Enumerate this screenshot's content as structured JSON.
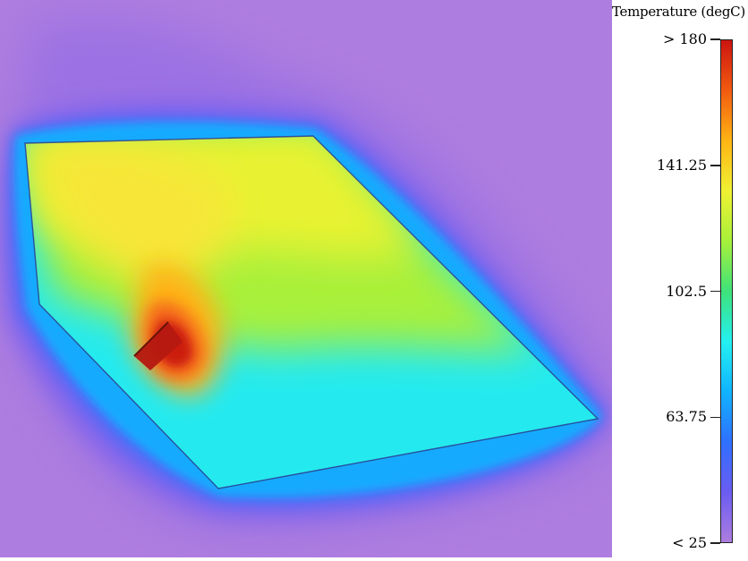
{
  "legend": {
    "title": "Temperature (degC)",
    "ticks": [
      {
        "label": "> 180",
        "value": 180
      },
      {
        "label": "141.25",
        "value": 141.25
      },
      {
        "label": "102.5",
        "value": 102.5
      },
      {
        "label": "63.75",
        "value": 63.75
      },
      {
        "label": "< 25",
        "value": 25
      }
    ],
    "range": [
      25,
      180
    ],
    "colorscale": [
      "#ad7ddf",
      "#6a5cf2",
      "#2f70ff",
      "#10b4ff",
      "#24f0f0",
      "#3ee27a",
      "#a8f03a",
      "#f0f232",
      "#ffb414",
      "#f25a10",
      "#cc1410"
    ]
  },
  "colors": {
    "background": "#ad7ddf",
    "outline": "#2a3c8c"
  }
}
